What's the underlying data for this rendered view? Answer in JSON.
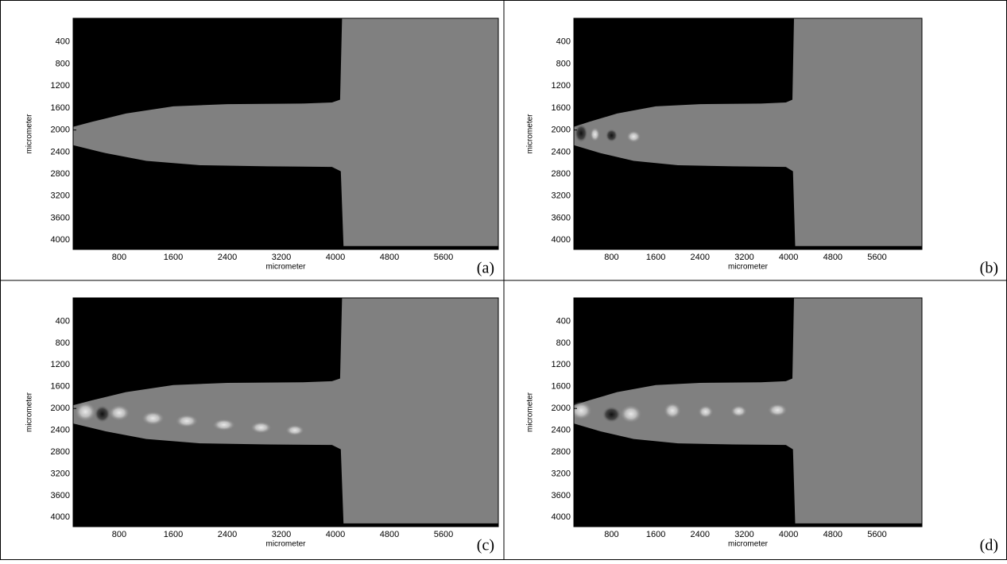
{
  "chart_data": [
    {
      "type": "image",
      "panel_label": "(a)",
      "xlabel": "micrometer",
      "ylabel": "micrometer",
      "xlim": [
        118,
        6412
      ],
      "ylim": [
        -30,
        4170
      ],
      "xticks": [
        800,
        1600,
        2400,
        3200,
        4000,
        4800,
        5600
      ],
      "yticks": [
        400,
        800,
        1200,
        1600,
        2000,
        2400,
        2800,
        3200,
        3600,
        4000
      ]
    },
    {
      "type": "image",
      "panel_label": "(b)",
      "xlabel": "micrometer",
      "ylabel": "micrometer",
      "xlim": [
        118,
        6412
      ],
      "ylim": [
        -30,
        4170
      ],
      "xticks": [
        800,
        1600,
        2400,
        3200,
        4000,
        4800,
        5600
      ],
      "yticks": [
        400,
        800,
        1200,
        1600,
        2000,
        2400,
        2800,
        3200,
        3600,
        4000
      ]
    },
    {
      "type": "image",
      "panel_label": "(c)",
      "xlabel": "micrometer",
      "ylabel": "micrometer",
      "xlim": [
        118,
        6412
      ],
      "ylim": [
        -30,
        4170
      ],
      "xticks": [
        800,
        1600,
        2400,
        3200,
        4000,
        4800,
        5600
      ],
      "yticks": [
        400,
        800,
        1200,
        1600,
        2000,
        2400,
        2800,
        3200,
        3600,
        4000
      ]
    },
    {
      "type": "image",
      "panel_label": "(d)",
      "xlabel": "micrometer",
      "ylabel": "micrometer",
      "xlim": [
        118,
        6412
      ],
      "ylim": [
        -30,
        4170
      ],
      "xticks": [
        800,
        1600,
        2400,
        3200,
        4000,
        4800,
        5600
      ],
      "yticks": [
        400,
        800,
        1200,
        1600,
        2000,
        2400,
        2800,
        3200,
        3600,
        4000
      ]
    }
  ]
}
